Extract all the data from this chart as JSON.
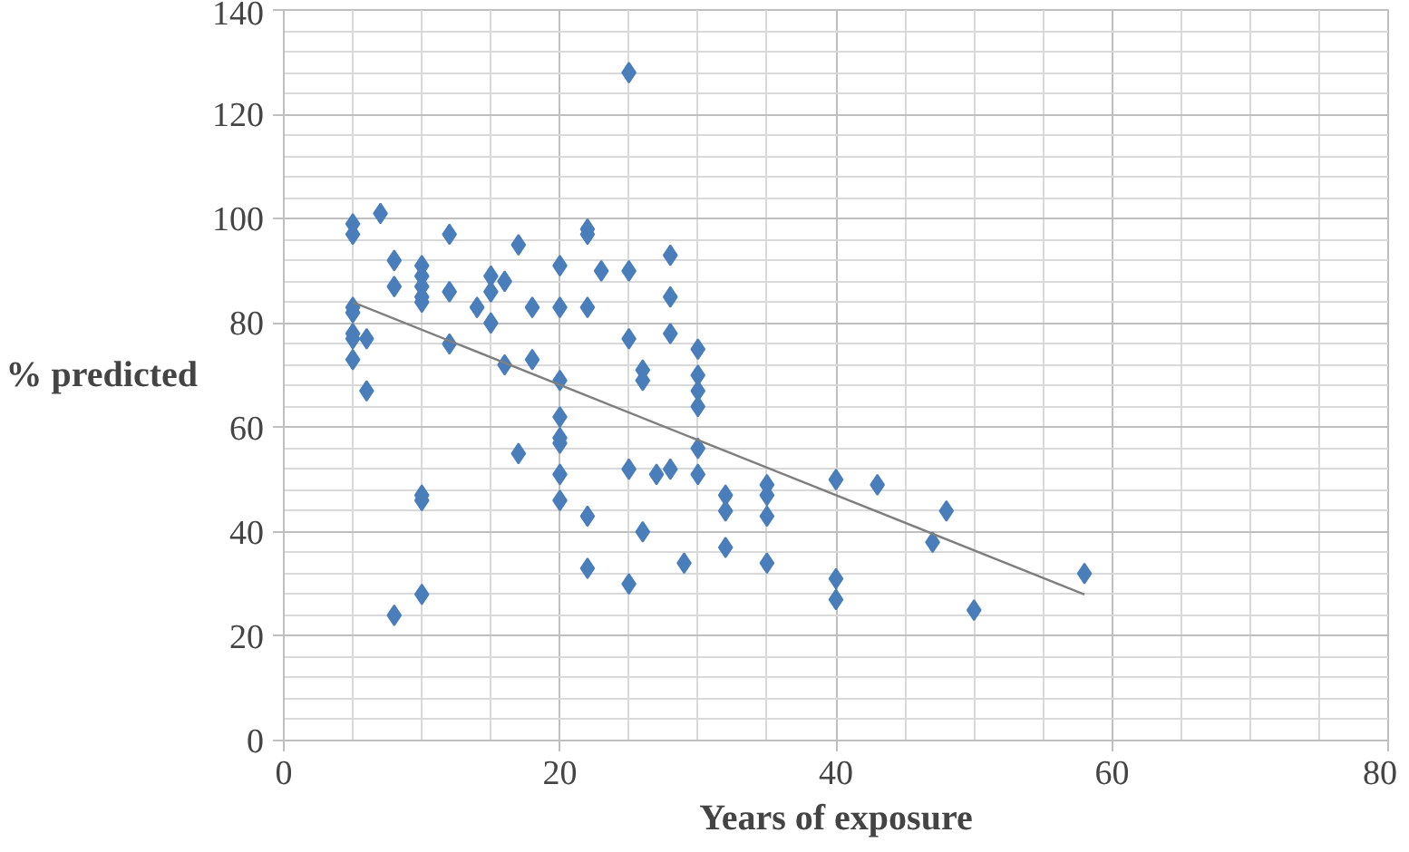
{
  "chart_data": {
    "type": "scatter",
    "xlabel": "Years of exposure",
    "ylabel": "% predicted",
    "xlim": [
      0,
      80
    ],
    "ylim": [
      0,
      140
    ],
    "xticks": [
      0,
      20,
      40,
      60,
      80
    ],
    "yticks": [
      0,
      20,
      40,
      60,
      80,
      100,
      120,
      140
    ],
    "grid": true,
    "series": [
      {
        "marker": "diamond",
        "color": "#4a7ebb",
        "x": [
          5,
          5,
          5,
          5,
          5,
          5,
          5,
          6,
          6,
          7,
          8,
          8,
          8,
          10,
          10,
          10,
          10,
          10,
          10,
          10,
          10,
          12,
          12,
          12,
          14,
          15,
          15,
          15,
          16,
          16,
          17,
          17,
          18,
          18,
          20,
          20,
          20,
          20,
          20,
          20,
          20,
          20,
          22,
          22,
          22,
          22,
          22,
          23,
          25,
          25,
          25,
          25,
          25,
          26,
          26,
          26,
          27,
          28,
          28,
          28,
          28,
          29,
          30,
          30,
          30,
          30,
          30,
          30,
          32,
          32,
          32,
          35,
          35,
          35,
          35,
          40,
          40,
          40,
          43,
          47,
          48,
          50,
          58
        ],
        "values": [
          99,
          97,
          83,
          82,
          78,
          77,
          73,
          67,
          77,
          101,
          92,
          87,
          24,
          91,
          89,
          87,
          85,
          84,
          47,
          46,
          28,
          97,
          86,
          76,
          83,
          89,
          86,
          80,
          88,
          72,
          95,
          55,
          83,
          73,
          91,
          83,
          69,
          62,
          58,
          57,
          51,
          46,
          98,
          97,
          83,
          43,
          33,
          90,
          128,
          90,
          77,
          52,
          30,
          71,
          69,
          40,
          51,
          93,
          85,
          78,
          52,
          34,
          75,
          70,
          67,
          64,
          56,
          51,
          47,
          44,
          37,
          49,
          47,
          43,
          34,
          50,
          31,
          27,
          49,
          38,
          44,
          25,
          32
        ]
      },
      {
        "type": "line",
        "color": "#7f7f7f",
        "x": [
          5,
          58
        ],
        "values": [
          84,
          28
        ]
      }
    ]
  }
}
